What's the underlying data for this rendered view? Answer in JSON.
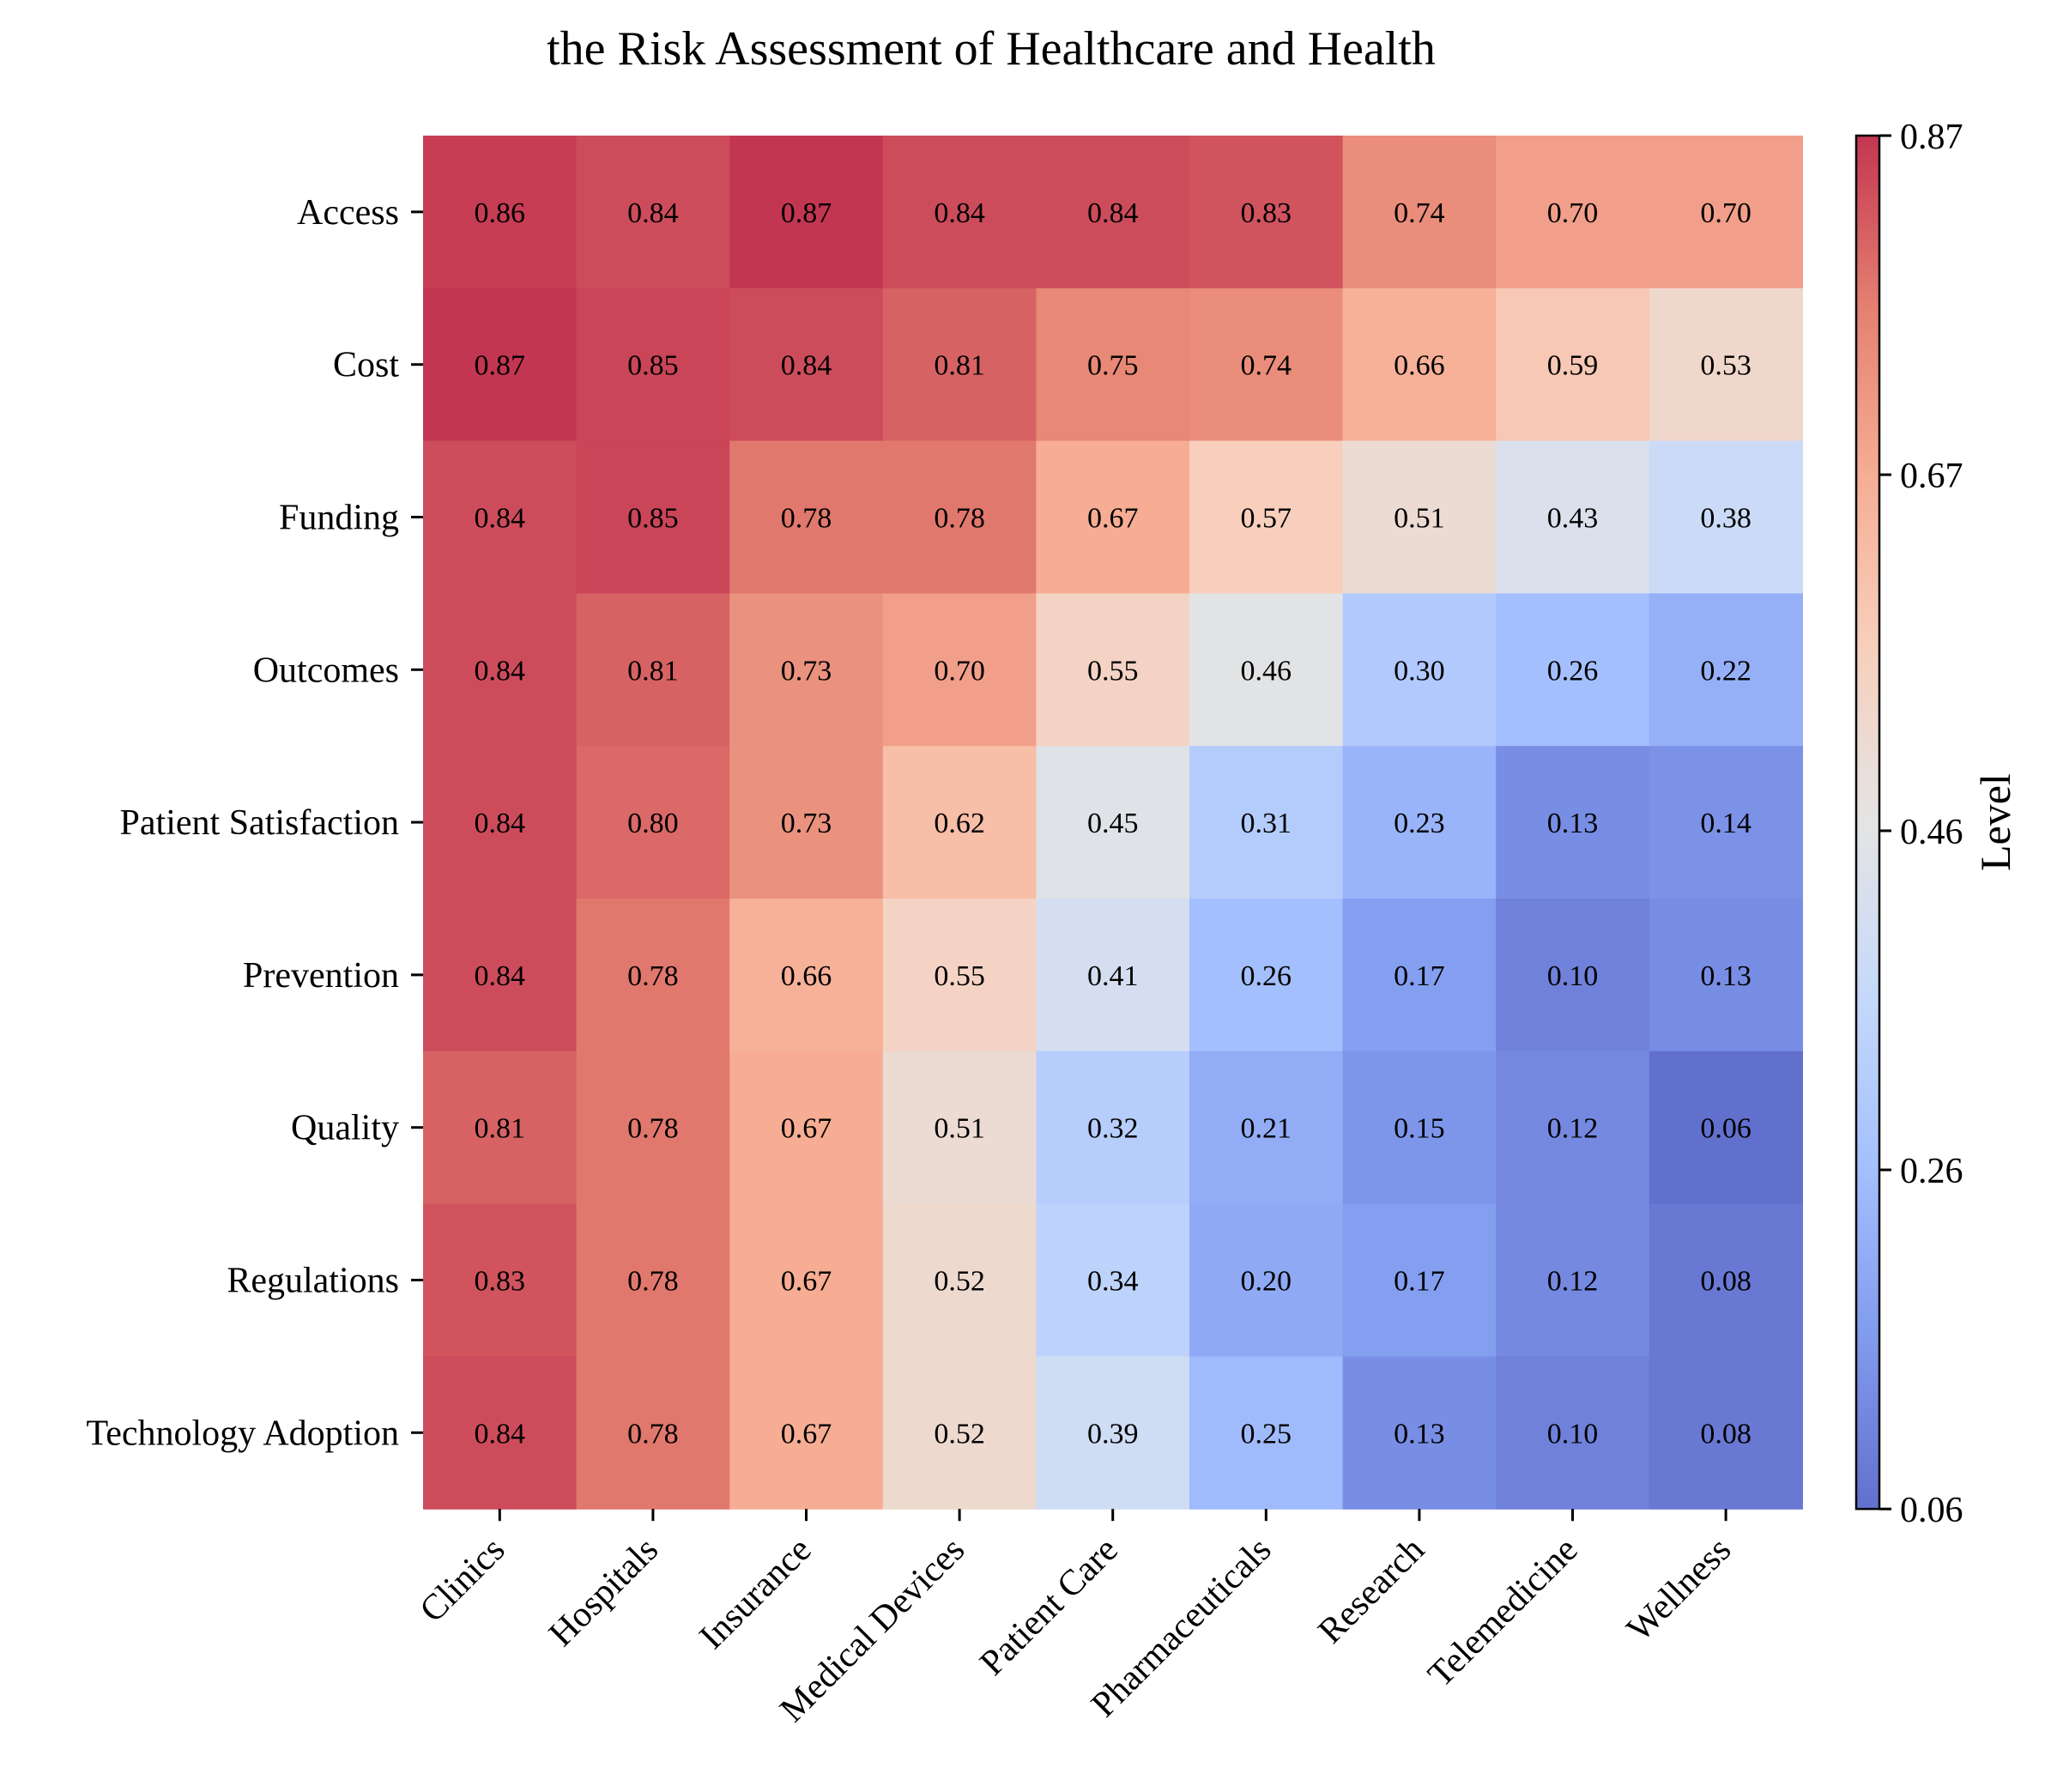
{
  "chart_data": {
    "type": "heatmap",
    "title": "the Risk Assessment of Healthcare and Health",
    "x_categories": [
      "Clinics",
      "Hospitals",
      "Insurance",
      "Medical Devices",
      "Patient Care",
      "Pharmaceuticals",
      "Research",
      "Telemedicine",
      "Wellness"
    ],
    "y_categories": [
      "Access",
      "Cost",
      "Funding",
      "Outcomes",
      "Patient Satisfaction",
      "Prevention",
      "Quality",
      "Regulations",
      "Technology Adoption"
    ],
    "values": [
      [
        0.86,
        0.84,
        0.87,
        0.84,
        0.84,
        0.83,
        0.74,
        0.7,
        0.7
      ],
      [
        0.87,
        0.85,
        0.84,
        0.81,
        0.75,
        0.74,
        0.66,
        0.59,
        0.53
      ],
      [
        0.84,
        0.85,
        0.78,
        0.78,
        0.67,
        0.57,
        0.51,
        0.43,
        0.38
      ],
      [
        0.84,
        0.81,
        0.73,
        0.7,
        0.55,
        0.46,
        0.3,
        0.26,
        0.22
      ],
      [
        0.84,
        0.8,
        0.73,
        0.62,
        0.45,
        0.31,
        0.23,
        0.13,
        0.14
      ],
      [
        0.84,
        0.78,
        0.66,
        0.55,
        0.41,
        0.26,
        0.17,
        0.1,
        0.13
      ],
      [
        0.81,
        0.78,
        0.67,
        0.51,
        0.32,
        0.21,
        0.15,
        0.12,
        0.06
      ],
      [
        0.83,
        0.78,
        0.67,
        0.52,
        0.34,
        0.2,
        0.17,
        0.12,
        0.08
      ],
      [
        0.84,
        0.78,
        0.67,
        0.52,
        0.39,
        0.25,
        0.13,
        0.1,
        0.08
      ]
    ],
    "value_range": [
      0.06,
      0.87
    ],
    "colormap": "coolwarm",
    "colormap_alpha": 0.8,
    "colorbar": {
      "label": "Level",
      "ticks": [
        "0.06",
        "0.26",
        "0.46",
        "0.67",
        "0.87"
      ],
      "placement": "right"
    },
    "grid": false
  }
}
